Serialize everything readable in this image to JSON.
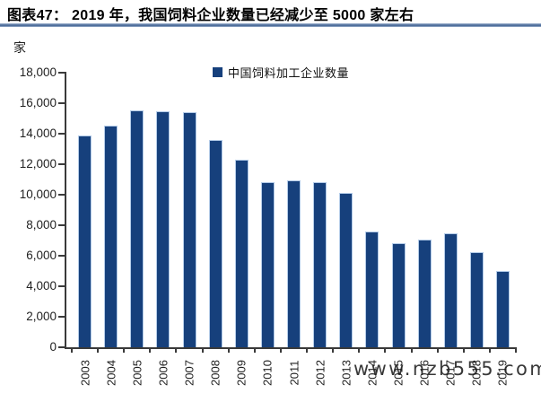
{
  "header": {
    "title": "图表47： 2019 年，我国饲料企业数量已经减少至 5000 家左右"
  },
  "chart_data": {
    "type": "bar",
    "title": "图表47： 2019 年，我国饲料企业数量已经减少至 5000 家左右",
    "unit_label": "家",
    "legend": [
      "中国饲料加工企业数量"
    ],
    "legend_position": "top-center",
    "categories": [
      "2003",
      "2004",
      "2005",
      "2006",
      "2007",
      "2008",
      "2009",
      "2010",
      "2011",
      "2012",
      "2013",
      "2014",
      "2015",
      "2016",
      "2017",
      "2018",
      "2019"
    ],
    "values": [
      13900,
      14550,
      15550,
      15500,
      15400,
      13600,
      12300,
      10850,
      10950,
      10850,
      10100,
      7600,
      6800,
      7050,
      7500,
      6250,
      5000
    ],
    "ylim": [
      0,
      18000
    ],
    "ytick_step": 2000,
    "grid": false,
    "xlabel": "",
    "ylabel": "家",
    "colors": {
      "bar_fill": "#16407C",
      "bar_border": "#B3CBE8",
      "axis": "#3A3A3A",
      "title_rule": "#4F6F9C"
    }
  },
  "watermark": {
    "text": "www.nzb555.com"
  }
}
